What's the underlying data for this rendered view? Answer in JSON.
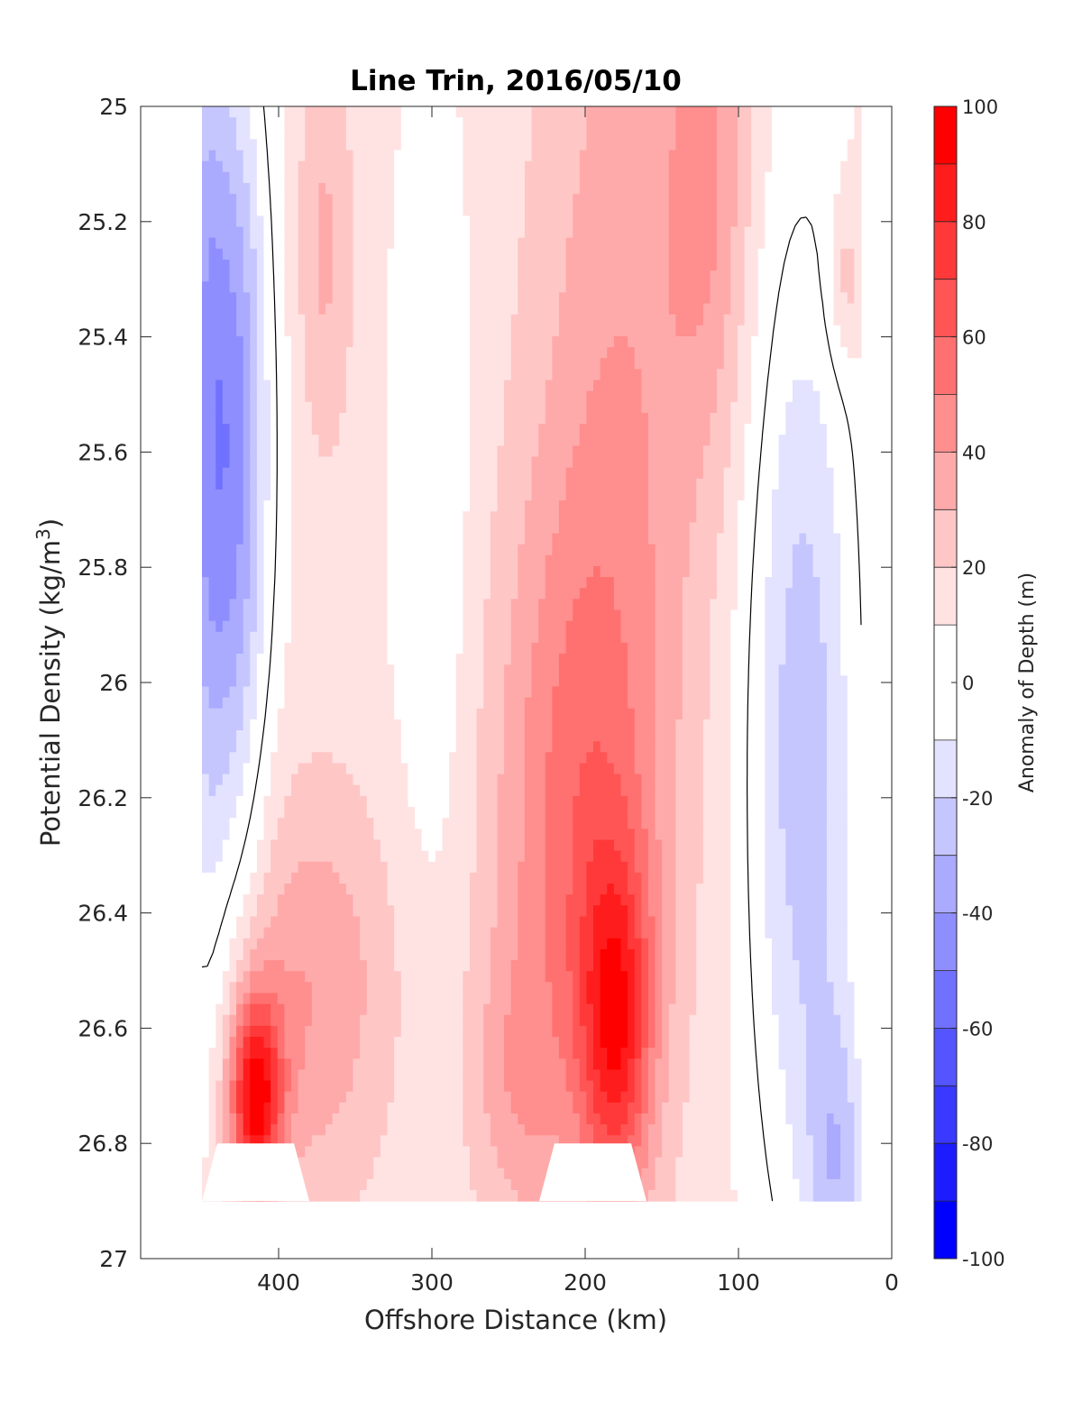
{
  "chart_data": {
    "type": "filled-contour",
    "title": "Line Trin, 2016/05/10",
    "xlabel": "Offshore Distance (km)",
    "ylabel": "Potential Density (kg/m",
    "ylabel_sup": "3",
    "ylabel_close": ")",
    "colorbar_label": "Anomaly of Depth (m)",
    "xlim": [
      490,
      0
    ],
    "ylim": [
      25,
      27
    ],
    "x_reversed": true,
    "y_reversed": true,
    "x_ticks": [
      400,
      300,
      200,
      100,
      0
    ],
    "x_tick_labels": [
      "400",
      "300",
      "200",
      "100",
      "0"
    ],
    "y_ticks": [
      25,
      25.2,
      25.4,
      25.6,
      25.8,
      26,
      26.2,
      26.4,
      26.6,
      26.8,
      27
    ],
    "y_tick_labels": [
      "25",
      "25.2",
      "25.4",
      "25.6",
      "25.8",
      "26",
      "26.2",
      "26.4",
      "26.6",
      "26.8",
      "27"
    ],
    "colorbar_range": [
      -100,
      100
    ],
    "colorbar_ticks": [
      100,
      80,
      60,
      40,
      20,
      0,
      -20,
      -40,
      -60,
      -80,
      -100
    ],
    "colorbar_tick_labels": [
      "100",
      "80",
      "60",
      "40",
      "20",
      "0",
      "-20",
      "-40",
      "-60",
      "-80",
      "-100"
    ],
    "contour_levels": [
      -100,
      -90,
      -80,
      -70,
      -60,
      -50,
      -40,
      -30,
      -20,
      -10,
      10,
      20,
      30,
      40,
      50,
      60,
      70,
      80,
      90,
      100
    ],
    "colors": {
      "levels": [
        "#0000ff",
        "#1c1cff",
        "#3939ff",
        "#5555ff",
        "#7171ff",
        "#8e8eff",
        "#aaaaff",
        "#c6c6ff",
        "#e3e3ff",
        "#ffffff",
        "#ffe3e3",
        "#ffc6c6",
        "#ffaaaa",
        "#ff8e8e",
        "#ff7171",
        "#ff5555",
        "#ff3939",
        "#ff1c1c",
        "#ff0000"
      ],
      "zero_contour": "#000000"
    },
    "data_x_range": [
      450,
      20
    ],
    "data_y_range": [
      25,
      26.9
    ]
  }
}
